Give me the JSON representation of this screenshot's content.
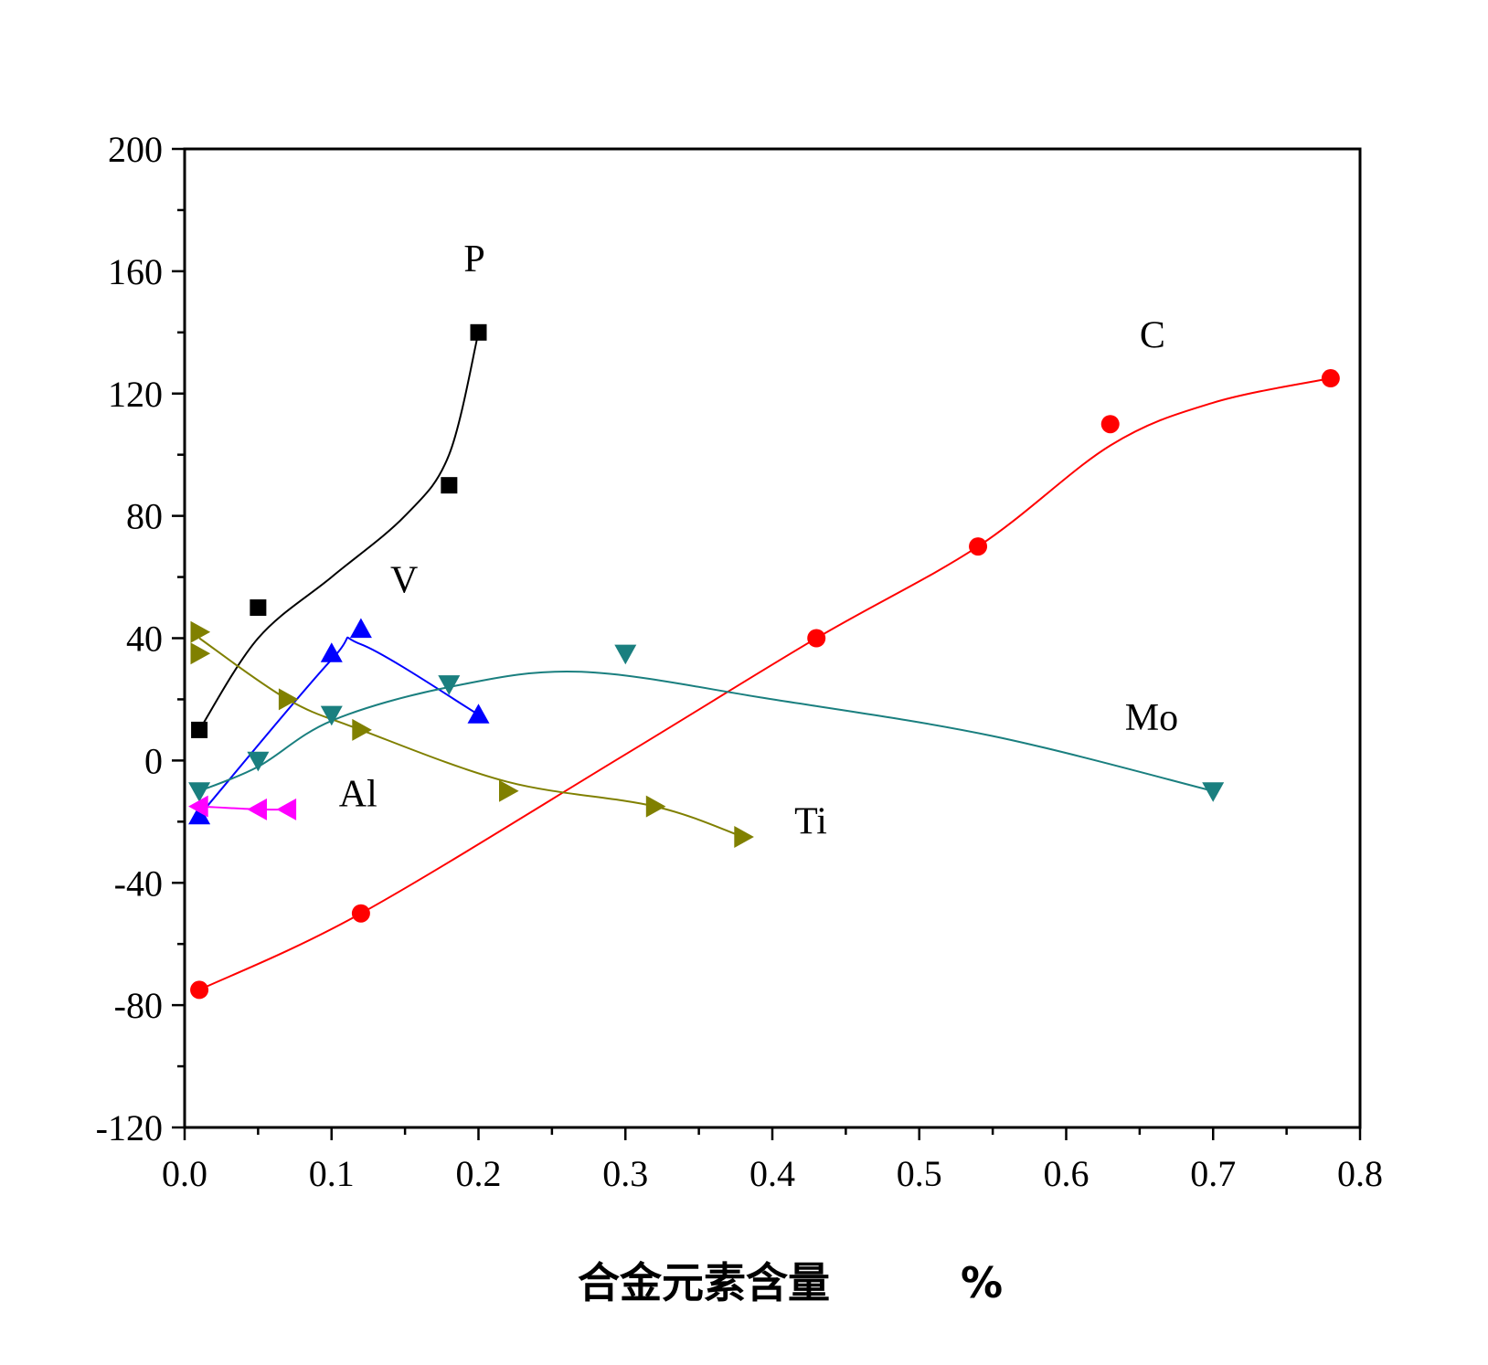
{
  "chart_data": {
    "type": "scatter",
    "xlabel": "合金元素含量",
    "xlabel_unit": "%",
    "ylabel": "",
    "xlim": [
      0.0,
      0.8
    ],
    "ylim": [
      -120,
      200
    ],
    "x_ticks": [
      "0.0",
      "0.1",
      "0.2",
      "0.3",
      "0.4",
      "0.5",
      "0.6",
      "0.7",
      "0.8"
    ],
    "y_ticks": [
      "-120",
      "-80",
      "-40",
      "0",
      "40",
      "80",
      "120",
      "160",
      "200"
    ],
    "grid": false,
    "legend": "none",
    "series": [
      {
        "name": "P",
        "color": "#000000",
        "marker": "square",
        "points": [
          [
            0.01,
            10
          ],
          [
            0.05,
            50
          ],
          [
            0.18,
            90
          ],
          [
            0.2,
            140
          ]
        ],
        "curve": [
          [
            0.01,
            10
          ],
          [
            0.05,
            40
          ],
          [
            0.1,
            60
          ],
          [
            0.15,
            80
          ],
          [
            0.18,
            100
          ],
          [
            0.2,
            140
          ]
        ]
      },
      {
        "name": "C",
        "color": "#ff0000",
        "marker": "circle",
        "points": [
          [
            0.01,
            -75
          ],
          [
            0.12,
            -50
          ],
          [
            0.43,
            40
          ],
          [
            0.54,
            70
          ],
          [
            0.63,
            110
          ],
          [
            0.78,
            125
          ]
        ],
        "curve": [
          [
            0.01,
            -75
          ],
          [
            0.12,
            -50
          ],
          [
            0.3,
            2
          ],
          [
            0.43,
            40
          ],
          [
            0.54,
            70
          ],
          [
            0.63,
            103
          ],
          [
            0.7,
            117
          ],
          [
            0.78,
            125
          ]
        ]
      },
      {
        "name": "V",
        "color": "#0000ff",
        "marker": "triangle-up",
        "points": [
          [
            0.01,
            -18
          ],
          [
            0.1,
            35
          ],
          [
            0.12,
            43
          ],
          [
            0.2,
            15
          ]
        ],
        "curve": [
          [
            0.01,
            -18
          ],
          [
            0.1,
            33
          ],
          [
            0.12,
            38
          ],
          [
            0.2,
            15
          ]
        ]
      },
      {
        "name": "Mo",
        "color": "#1a7f7f",
        "marker": "triangle-down",
        "points": [
          [
            0.01,
            -10
          ],
          [
            0.05,
            0
          ],
          [
            0.1,
            15
          ],
          [
            0.18,
            25
          ],
          [
            0.3,
            35
          ],
          [
            0.7,
            -10
          ]
        ],
        "curve": [
          [
            0.01,
            -10
          ],
          [
            0.05,
            -2
          ],
          [
            0.1,
            13
          ],
          [
            0.18,
            24
          ],
          [
            0.27,
            29
          ],
          [
            0.4,
            20
          ],
          [
            0.55,
            8
          ],
          [
            0.7,
            -10
          ]
        ]
      },
      {
        "name": "Al",
        "color": "#ff00ff",
        "marker": "triangle-left",
        "points": [
          [
            0.01,
            -15
          ],
          [
            0.05,
            -16
          ],
          [
            0.07,
            -16
          ]
        ],
        "curve": [
          [
            0.01,
            -15
          ],
          [
            0.05,
            -16
          ],
          [
            0.07,
            -16
          ]
        ]
      },
      {
        "name": "Ti",
        "color": "#808000",
        "marker": "triangle-right",
        "points": [
          [
            0.01,
            42
          ],
          [
            0.01,
            35
          ],
          [
            0.07,
            20
          ],
          [
            0.12,
            10
          ],
          [
            0.22,
            -10
          ],
          [
            0.32,
            -15
          ],
          [
            0.38,
            -25
          ]
        ],
        "curve": [
          [
            0.01,
            40
          ],
          [
            0.07,
            20
          ],
          [
            0.12,
            10
          ],
          [
            0.22,
            -7
          ],
          [
            0.32,
            -15
          ],
          [
            0.38,
            -25
          ]
        ]
      }
    ],
    "annotations": [
      {
        "text": "P",
        "x": 0.19,
        "y": 160
      },
      {
        "text": "C",
        "x": 0.65,
        "y": 135
      },
      {
        "text": "V",
        "x": 0.14,
        "y": 55
      },
      {
        "text": "Mo",
        "x": 0.64,
        "y": 10
      },
      {
        "text": "Al",
        "x": 0.105,
        "y": -15
      },
      {
        "text": "Ti",
        "x": 0.415,
        "y": -24
      }
    ]
  }
}
